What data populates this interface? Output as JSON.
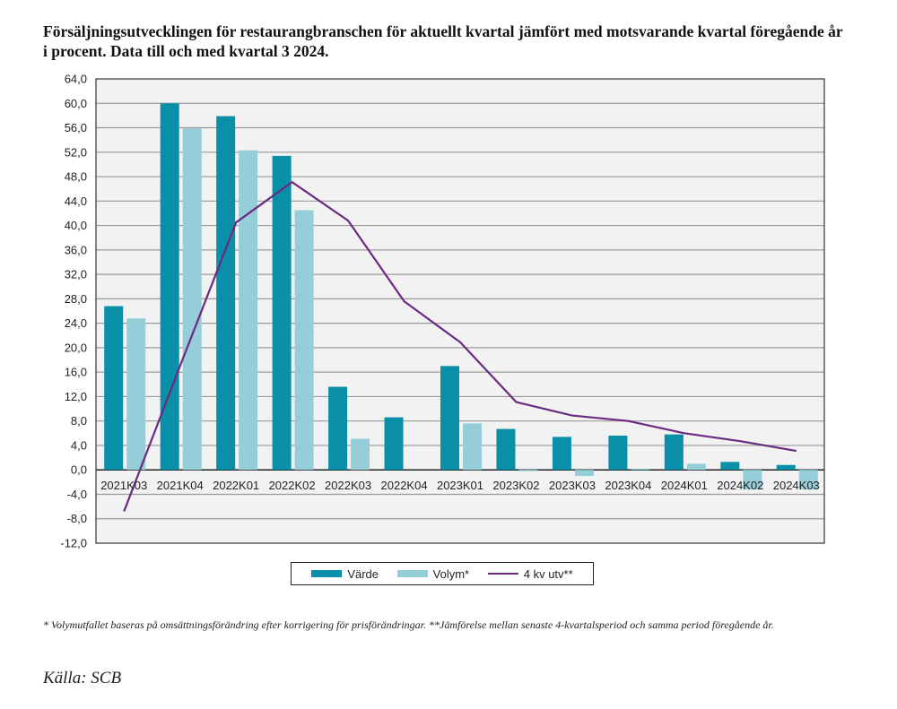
{
  "header": {
    "title": "Försäljningsutvecklingen för restaurangbranschen för aktuellt kvartal jämfört med motsvarande kvartal föregående år i procent. Data till och med kvartal 3 2024."
  },
  "chart_data": {
    "type": "bar",
    "title": "Försäljningsutvecklingen för restaurangbranschen för aktuellt kvartal jämfört med motsvarande kvartal föregående år i procent. Data till och med kvartal 3 2024.",
    "xlabel": "",
    "ylabel": "",
    "ylim": [
      -12,
      64
    ],
    "ytick_step": 4,
    "ytick_labels": [
      "64,0",
      "60,0",
      "56,0",
      "52,0",
      "48,0",
      "44,0",
      "40,0",
      "36,0",
      "32,0",
      "28,0",
      "24,0",
      "20,0",
      "16,0",
      "12,0",
      "8,0",
      "4,0",
      "0,0",
      "-4,0",
      "-8,0",
      "-12,0"
    ],
    "grid": true,
    "legend_position": "bottom-center",
    "categories": [
      "2021K03",
      "2021K04",
      "2022K01",
      "2022K02",
      "2022K03",
      "2022K04",
      "2023K01",
      "2023K02",
      "2023K03",
      "2023K04",
      "2024K01",
      "2024K02",
      "2024K03"
    ],
    "series": [
      {
        "name": "Värde",
        "kind": "bar",
        "color": "#0a8fa8",
        "values": [
          26.8,
          60.0,
          57.9,
          51.4,
          13.6,
          8.6,
          17.0,
          6.7,
          5.4,
          5.6,
          5.8,
          1.3,
          0.8
        ]
      },
      {
        "name": "Volym*",
        "kind": "bar",
        "color": "#95cdd8",
        "values": [
          24.8,
          55.9,
          52.3,
          42.5,
          5.1,
          0.0,
          7.6,
          -0.2,
          -1.0,
          0.2,
          1.0,
          -3.2,
          -3.2
        ]
      },
      {
        "name": "4 kv utv**",
        "kind": "line",
        "color": "#6a2a82",
        "values": [
          -6.8,
          17.0,
          40.5,
          47.1,
          40.8,
          27.6,
          20.9,
          11.1,
          8.9,
          8.0,
          6.0,
          4.7,
          3.1
        ]
      }
    ]
  },
  "legend": {
    "items": [
      {
        "label": "Värde",
        "color": "#0a8fa8"
      },
      {
        "label": "Volym*",
        "color": "#95cdd8"
      },
      {
        "label": "4 kv utv**",
        "color": "#6a2a82"
      }
    ]
  },
  "footnote": "* Volymutfallet baseras på omsättningsförändring efter korrigering för prisförändringar. **Jämförelse mellan senaste 4-kvartalsperiod och samma period föregående år.",
  "source": "Källa: SCB"
}
